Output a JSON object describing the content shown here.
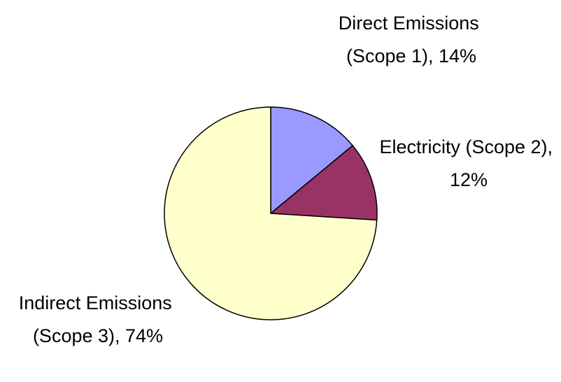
{
  "chart_data": {
    "type": "pie",
    "values": [
      14,
      12,
      74
    ],
    "value_labels": [
      "Direct Emissions (Scope 1), 14%",
      "Electricity (Scope 2), 12%",
      "Indirect Emissions (Scope 3), 74%"
    ],
    "colors": [
      "#9999ff",
      "#993366",
      "#ffffcc"
    ]
  }
}
